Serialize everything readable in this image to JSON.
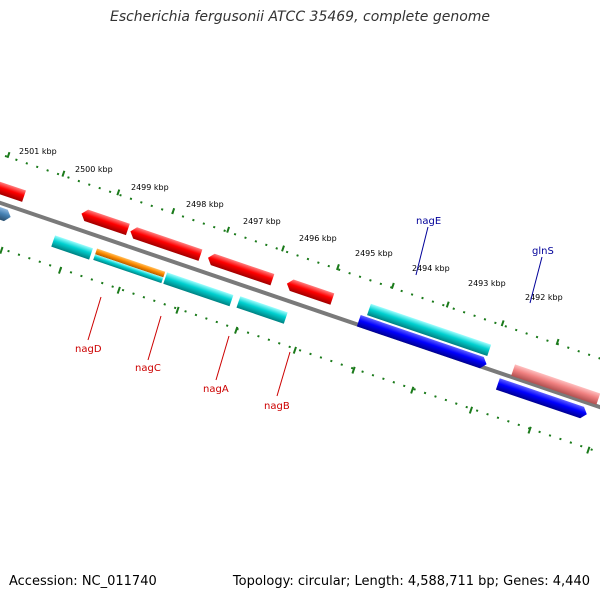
{
  "title": "Escherichia fergusonii ATCC 35469, complete genome",
  "footer": {
    "accession": "Accession: NC_011740",
    "stats": "Topology: circular; Length: 4,588,711 bp; Genes: 4,440"
  },
  "scale_labels": [
    "2501 kbp",
    "2500 kbp",
    "2499 kbp",
    "2498 kbp",
    "2497 kbp",
    "2496 kbp",
    "2495 kbp",
    "2494 kbp",
    "2493 kbp",
    "2492 kbp"
  ],
  "gene_labels": {
    "nagD": "nagD",
    "nagC": "nagC",
    "nagA": "nagA",
    "nagB": "nagB",
    "nagE": "nagE",
    "glnS": "glnS"
  },
  "colors": {
    "backbone": "#7a7a7a",
    "forward_cds": "#ff0000",
    "reverse_cds": "#00d0d0",
    "blue_cds": "#0000ff",
    "steel_cds": "#4682b4",
    "orange_cds": "#ff8c00",
    "pink_cds": "#f08080",
    "label_red": "#cc0000",
    "label_blue": "#000099",
    "tick_green": "#1a7a1a"
  }
}
